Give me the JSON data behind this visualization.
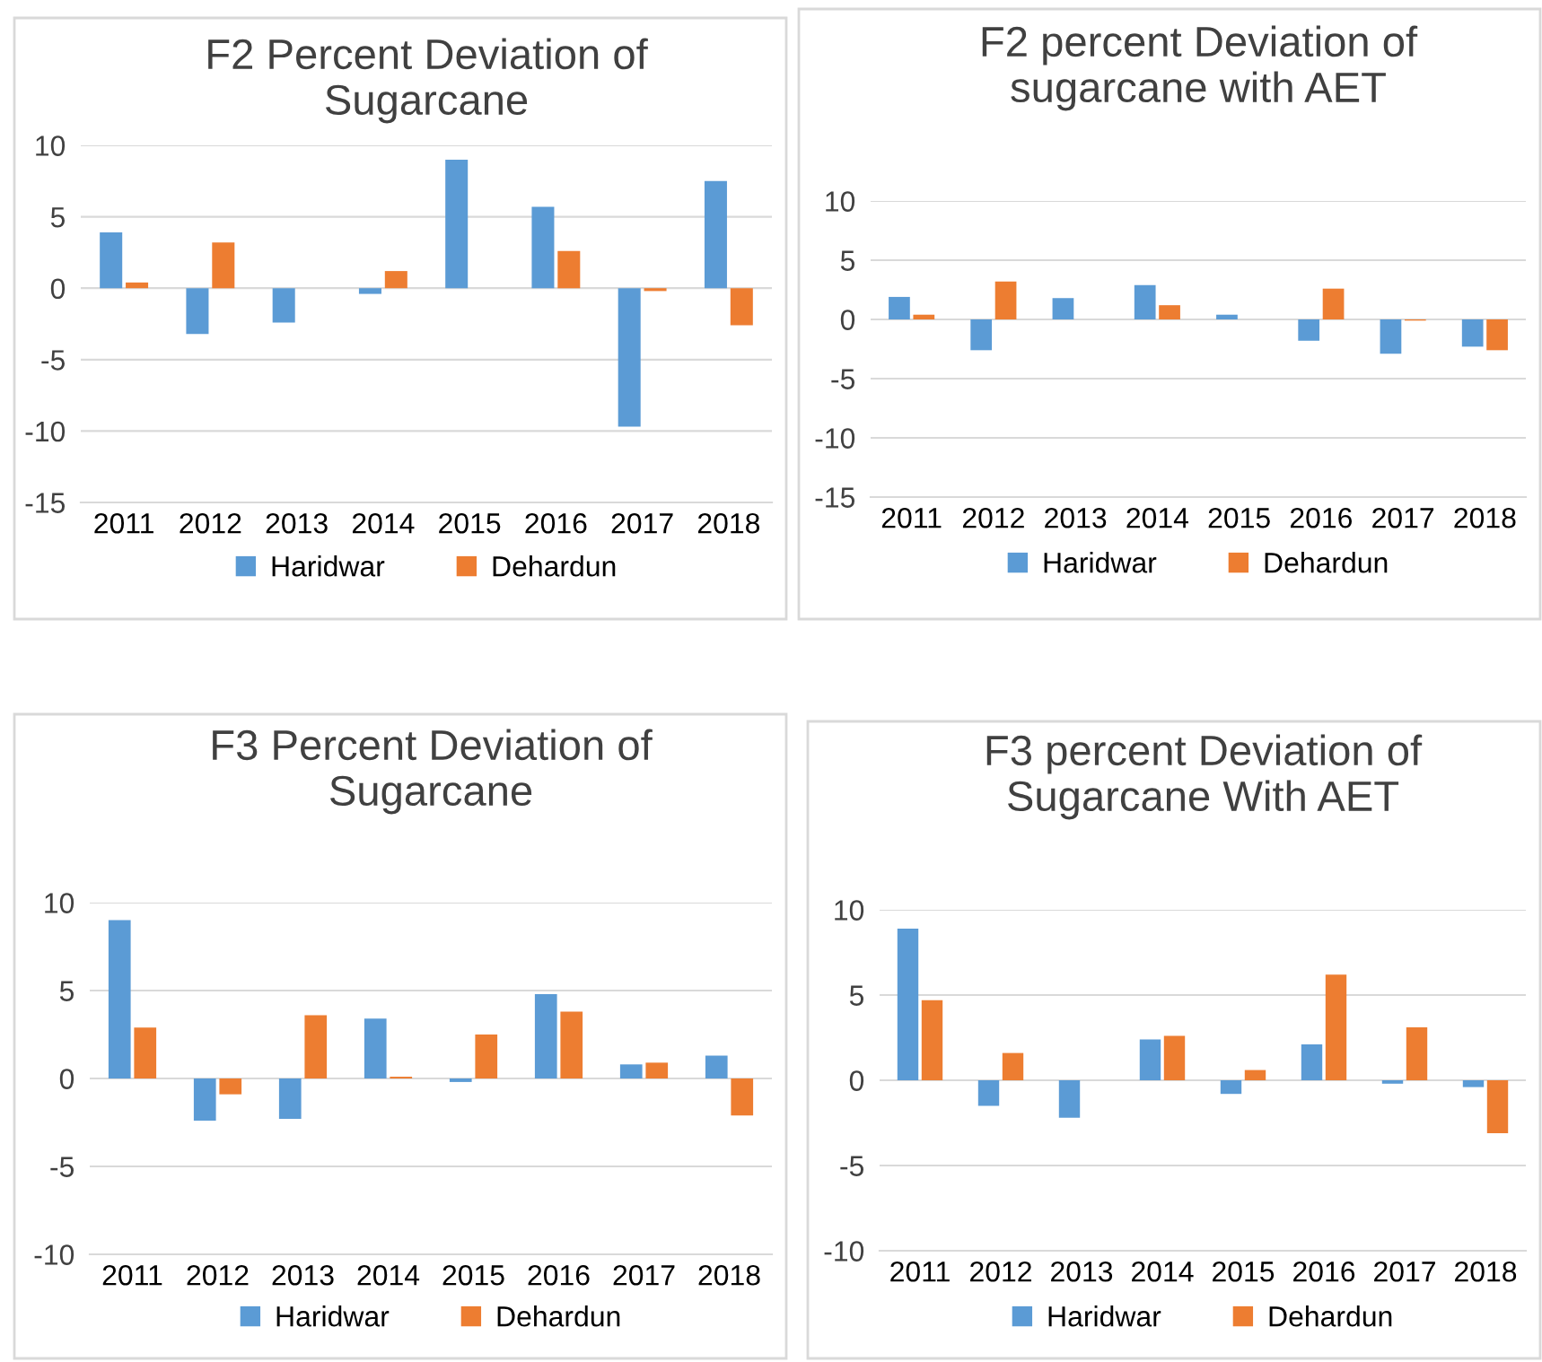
{
  "chart_data": [
    {
      "type": "bar",
      "title": "F2 Percent Deviation of\nSugarcane",
      "categories": [
        "2011",
        "2012",
        "2013",
        "2014",
        "2015",
        "2016",
        "2017",
        "2018"
      ],
      "series": [
        {
          "name": "Haridwar",
          "color": "#5b9bd5",
          "values": [
            3.9,
            -3.2,
            -2.4,
            -0.4,
            9.0,
            5.7,
            -9.7,
            7.5
          ]
        },
        {
          "name": "Dehardun",
          "color": "#ed7d31",
          "values": [
            0.4,
            3.2,
            0,
            1.2,
            0,
            2.6,
            -0.2,
            -2.6
          ]
        }
      ],
      "ylim": [
        -15,
        10
      ],
      "yticks": [
        -15,
        -10,
        -5,
        0,
        5,
        10
      ],
      "grid": "y",
      "legend": "bottom"
    },
    {
      "type": "bar",
      "title": "F2 percent Deviation of\nsugarcane with AET",
      "categories": [
        "2011",
        "2012",
        "2013",
        "2014",
        "2015",
        "2016",
        "2017",
        "2018"
      ],
      "series": [
        {
          "name": "Haridwar",
          "color": "#5b9bd5",
          "values": [
            1.9,
            -2.6,
            1.8,
            2.9,
            0.4,
            -1.8,
            -2.9,
            -2.3
          ]
        },
        {
          "name": "Dehardun",
          "color": "#ed7d31",
          "values": [
            0.4,
            3.2,
            0,
            1.2,
            0,
            2.6,
            -0.1,
            -2.6
          ]
        }
      ],
      "ylim": [
        -15,
        10
      ],
      "yticks": [
        -15,
        -10,
        -5,
        0,
        5,
        10
      ],
      "grid": "y",
      "legend": "bottom"
    },
    {
      "type": "bar",
      "title": "F3 Percent Deviation of\nSugarcane",
      "categories": [
        "2011",
        "2012",
        "2013",
        "2014",
        "2015",
        "2016",
        "2017",
        "2018"
      ],
      "series": [
        {
          "name": "Haridwar",
          "color": "#5b9bd5",
          "values": [
            9.0,
            -2.4,
            -2.3,
            3.4,
            -0.2,
            4.8,
            0.8,
            1.3
          ]
        },
        {
          "name": "Dehardun",
          "color": "#ed7d31",
          "values": [
            2.9,
            -0.9,
            3.6,
            0.1,
            2.5,
            3.8,
            0.9,
            -2.1
          ]
        }
      ],
      "ylim": [
        -10,
        10
      ],
      "yticks": [
        -10,
        -5,
        0,
        5,
        10
      ],
      "grid": "y",
      "legend": "bottom"
    },
    {
      "type": "bar",
      "title": "F3 percent Deviation of\nSugarcane With AET",
      "categories": [
        "2011",
        "2012",
        "2013",
        "2014",
        "2015",
        "2016",
        "2017",
        "2018"
      ],
      "series": [
        {
          "name": "Haridwar",
          "color": "#5b9bd5",
          "values": [
            8.9,
            -1.5,
            -2.2,
            2.4,
            -0.8,
            2.1,
            -0.2,
            -0.4
          ]
        },
        {
          "name": "Dehardun",
          "color": "#ed7d31",
          "values": [
            4.7,
            1.6,
            0,
            2.6,
            0.6,
            6.2,
            3.1,
            -3.1
          ]
        }
      ],
      "ylim": [
        -10,
        10
      ],
      "yticks": [
        -10,
        -5,
        0,
        5,
        10
      ],
      "grid": "y",
      "legend": "bottom"
    }
  ]
}
